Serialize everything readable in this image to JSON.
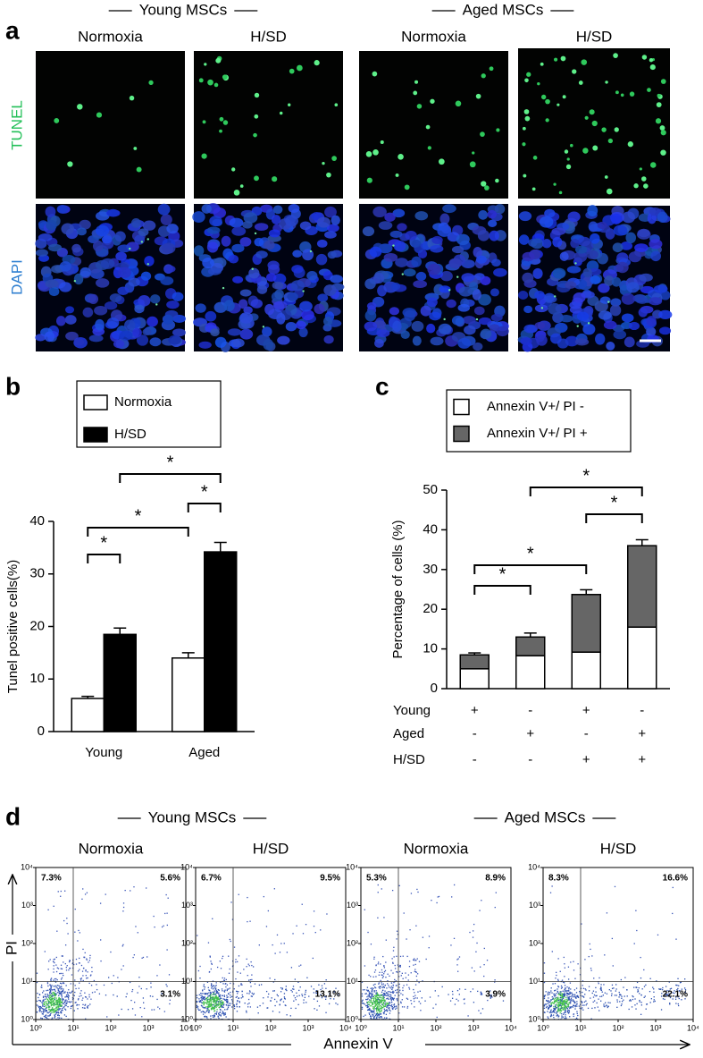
{
  "panel_a": {
    "label": "a",
    "groups": [
      "Young  MSCs",
      "Aged MSCs"
    ],
    "columns": [
      "Normoxia",
      "H/SD",
      "Normoxia",
      "H/SD"
    ],
    "rows": [
      "TUNEL",
      "DAPI"
    ]
  },
  "chart_data": [
    {
      "type": "bar",
      "panel_label": "b",
      "ylabel": "Tunel positive cells(%)",
      "categories": [
        "Young",
        "Aged"
      ],
      "series": [
        {
          "name": "Normoxia",
          "color": "#ffffff",
          "values": [
            6.3,
            14
          ],
          "errors": [
            0.4,
            1.0
          ]
        },
        {
          "name": "H/SD",
          "color": "#000000",
          "values": [
            18.5,
            34.2
          ],
          "errors": [
            1.2,
            1.8
          ]
        }
      ],
      "ylim": [
        0,
        40
      ],
      "yticks": [
        0,
        10,
        20,
        30,
        40
      ],
      "annotations": [
        "*",
        "*",
        "*",
        "*"
      ],
      "stacked": false
    },
    {
      "type": "bar",
      "panel_label": "c",
      "ylabel": "Percentage of  cells (%)",
      "categories": [
        null,
        null,
        null,
        null
      ],
      "series": [
        {
          "name": "Annexin V+/ PI -",
          "color": "#ffffff",
          "values": [
            5,
            8.3,
            9.2,
            15.5
          ]
        },
        {
          "name": "Annexin V+/ PI +",
          "color": "#666666",
          "values": [
            3.5,
            4.7,
            14.5,
            20.5
          ],
          "errors": [
            0.5,
            1.0,
            1.2,
            1.5
          ]
        }
      ],
      "ylim": [
        0,
        50
      ],
      "yticks": [
        0,
        10,
        20,
        30,
        40,
        50
      ],
      "annotations": [
        "*",
        "*",
        "*",
        "*"
      ],
      "stacked": true,
      "condition_table": {
        "labels": [
          "Young",
          "Aged",
          "H/SD"
        ],
        "rows": [
          [
            "+",
            "-",
            "+",
            "-"
          ],
          [
            "-",
            "+",
            "-",
            "+"
          ],
          [
            "-",
            "-",
            "+",
            "+"
          ]
        ]
      }
    }
  ],
  "panel_d": {
    "label": "d",
    "groups": [
      "Young  MSCs",
      "Aged MSCs"
    ],
    "xlabel": "Annexin V",
    "ylabel": "PI",
    "log_scale": true,
    "xlim": [
      1,
      10000
    ],
    "ylim": [
      1,
      10000
    ],
    "ticks": [
      {
        "value": 1,
        "label": "10⁰"
      },
      {
        "value": 10,
        "label": "10¹"
      },
      {
        "value": 100,
        "label": "10²"
      },
      {
        "value": 1000,
        "label": "10³"
      },
      {
        "value": 10000,
        "label": "10⁴"
      }
    ],
    "plots": [
      {
        "title": "Normoxia",
        "quadrants": [
          "7.3%",
          "5.6%",
          "3.1%"
        ]
      },
      {
        "title": "H/SD",
        "quadrants": [
          "6.7%",
          "9.5%",
          "13.1%"
        ]
      },
      {
        "title": "Normoxia",
        "quadrants": [
          "5.3%",
          "8.9%",
          "3.9%"
        ]
      },
      {
        "title": "H/SD",
        "quadrants": [
          "8.3%",
          "16.6%",
          "22.1%"
        ]
      }
    ]
  }
}
